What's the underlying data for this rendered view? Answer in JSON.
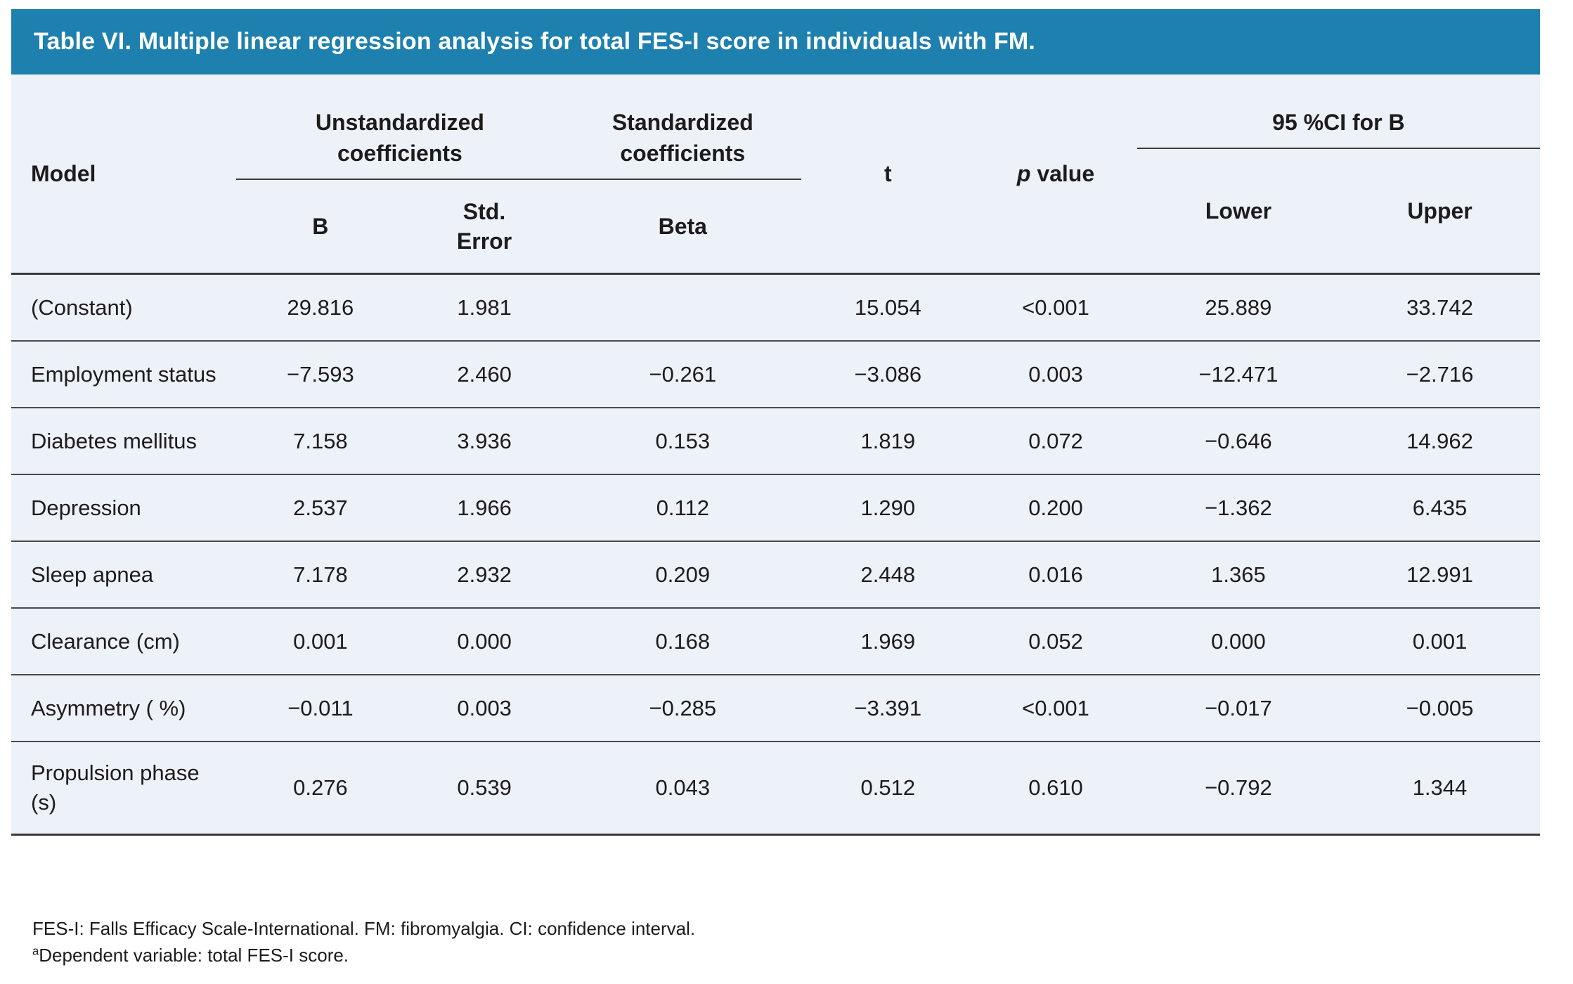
{
  "title": "Table VI. Multiple linear regression analysis for total FES-I score in individuals with FM.",
  "colors": {
    "title_bar_background": "#1d80ae",
    "title_text": "#ffffff",
    "table_background": "#edf1f8",
    "row_border": "#4a4a4a",
    "text": "#1c1c1c"
  },
  "header": {
    "model": "Model",
    "unstandardized_group": "Unstandardized\ncoefficients",
    "standardized_group": "Standardized\ncoefficients",
    "t": "t",
    "p_italic": "p",
    "p_rest": " value",
    "ci_group": "95 %CI for B",
    "b": "B",
    "std_error": "Std.\nError",
    "beta": "Beta",
    "lower": "Lower",
    "upper": "Upper"
  },
  "rows": [
    {
      "model": "(Constant)",
      "b": "29.816",
      "std_error": "1.981",
      "beta": "",
      "t": "15.054",
      "p": "<0.001",
      "lower": "25.889",
      "upper": "33.742"
    },
    {
      "model": "Employment status",
      "b": "−7.593",
      "std_error": "2.460",
      "beta": "−0.261",
      "t": "−3.086",
      "p": "0.003",
      "lower": "−12.471",
      "upper": "−2.716"
    },
    {
      "model": "Diabetes mellitus",
      "b": "7.158",
      "std_error": "3.936",
      "beta": "0.153",
      "t": "1.819",
      "p": "0.072",
      "lower": "−0.646",
      "upper": "14.962"
    },
    {
      "model": "Depression",
      "b": "2.537",
      "std_error": "1.966",
      "beta": "0.112",
      "t": "1.290",
      "p": "0.200",
      "lower": "−1.362",
      "upper": "6.435"
    },
    {
      "model": "Sleep apnea",
      "b": "7.178",
      "std_error": "2.932",
      "beta": "0.209",
      "t": "2.448",
      "p": "0.016",
      "lower": "1.365",
      "upper": "12.991"
    },
    {
      "model": "Clearance (cm)",
      "b": "0.001",
      "std_error": "0.000",
      "beta": "0.168",
      "t": "1.969",
      "p": "0.052",
      "lower": "0.000",
      "upper": "0.001"
    },
    {
      "model": "Asymmetry ( %)",
      "b": "−0.011",
      "std_error": "0.003",
      "beta": "−0.285",
      "t": "−3.391",
      "p": "<0.001",
      "lower": "−0.017",
      "upper": "−0.005"
    },
    {
      "model": "Propulsion phase (s)",
      "b": "0.276",
      "std_error": "0.539",
      "beta": "0.043",
      "t": "0.512",
      "p": "0.610",
      "lower": "−0.792",
      "upper": "1.344"
    }
  ],
  "footnotes": {
    "abbreviations": "FES-I: Falls Efficacy Scale-International. FM: fibromyalgia. CI: confidence interval.",
    "dependent_marker": "a",
    "dependent": "Dependent variable: total FES-I score."
  }
}
